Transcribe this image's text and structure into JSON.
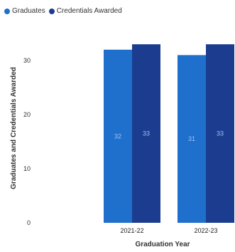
{
  "chart_data": {
    "type": "bar",
    "categories": [
      "2021-22",
      "2022-23"
    ],
    "series": [
      {
        "name": "Graduates",
        "values": [
          32,
          31
        ],
        "data_labels": [
          "32",
          "31"
        ],
        "color": "#1f6fcc"
      },
      {
        "name": "Credentials Awarded",
        "values": [
          33,
          33
        ],
        "data_labels": [
          "33",
          "33"
        ],
        "color": "#1c3d8f"
      }
    ],
    "xlabel": "Graduation Year",
    "ylabel": "Graduates and Credentials Awarded",
    "ylim": [
      0,
      35
    ],
    "yticks": [
      0,
      10,
      20,
      30
    ],
    "grid": false,
    "legend_position": "top-left"
  }
}
